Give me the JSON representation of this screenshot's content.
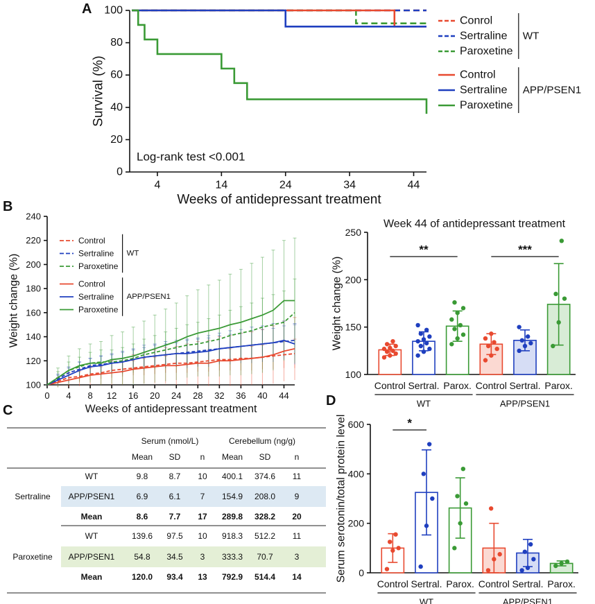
{
  "panel_labels": [
    "A",
    "B",
    "C",
    "D"
  ],
  "chart_data": [
    {
      "type": "step",
      "ylabel": "Survival (%)",
      "xlabel": "Weeks of antidepressant treatment",
      "annotation": "Log-rank test <0.001",
      "xlim": [
        0,
        46
      ],
      "xticks": [
        4,
        14,
        24,
        34,
        44
      ],
      "ylim": [
        0,
        100
      ],
      "yticks": [
        0,
        20,
        40,
        60,
        80,
        100
      ],
      "legend": "right",
      "series": [
        {
          "name": "Conrol",
          "group": "WT",
          "color": "#e8492f",
          "dashed": true,
          "x": [
            0,
            46
          ],
          "values": [
            100,
            100
          ]
        },
        {
          "name": "Sertraline",
          "group": "WT",
          "color": "#1f3fbf",
          "dashed": true,
          "x": [
            0,
            46
          ],
          "values": [
            100,
            100
          ]
        },
        {
          "name": "Paroxetine",
          "group": "WT",
          "color": "#3a9a35",
          "dashed": true,
          "x": [
            0,
            35,
            46
          ],
          "values": [
            100,
            92,
            92
          ]
        },
        {
          "name": "Control",
          "group": "APP/PSEN1",
          "color": "#e8492f",
          "dashed": false,
          "x": [
            0,
            41,
            46
          ],
          "values": [
            100,
            90,
            90
          ]
        },
        {
          "name": "Sertraline",
          "group": "APP/PSEN1",
          "color": "#1f3fbf",
          "dashed": false,
          "x": [
            0,
            24,
            46
          ],
          "values": [
            100,
            90,
            90
          ]
        },
        {
          "name": "Paroxetine",
          "group": "APP/PSEN1",
          "color": "#3a9a35",
          "dashed": false,
          "x": [
            0,
            1,
            2,
            4,
            14,
            16,
            18,
            46
          ],
          "values": [
            100,
            91,
            82,
            73,
            64,
            55,
            45,
            36
          ]
        }
      ]
    },
    {
      "type": "line",
      "ylabel": "Weight change (%)",
      "xlabel": "Weeks of antidepressant treatment",
      "xlim": [
        0,
        46
      ],
      "xticks": [
        0,
        4,
        8,
        12,
        16,
        20,
        24,
        28,
        32,
        36,
        40,
        44
      ],
      "ylim": [
        100,
        240
      ],
      "yticks": [
        100,
        120,
        140,
        160,
        180,
        200,
        220,
        240
      ],
      "legend": "upper left",
      "x": [
        0,
        2,
        4,
        6,
        8,
        10,
        12,
        14,
        16,
        18,
        20,
        22,
        24,
        26,
        28,
        30,
        32,
        34,
        36,
        38,
        40,
        42,
        44,
        46
      ],
      "series": [
        {
          "name": "Control",
          "group": "WT",
          "color": "#e8492f",
          "dashed": true,
          "values": [
            100,
            103,
            106,
            107,
            109,
            110,
            112,
            113,
            114,
            115,
            116,
            117,
            118,
            118,
            119,
            120,
            121,
            121,
            122,
            122,
            123,
            124,
            125,
            126
          ],
          "errors": [
            0,
            3,
            4,
            4,
            5,
            5,
            6,
            6,
            6,
            7,
            7,
            7,
            8,
            8,
            8,
            9,
            9,
            9,
            10,
            10,
            10,
            11,
            11,
            12
          ]
        },
        {
          "name": "Sertraline",
          "group": "WT",
          "color": "#1f3fbf",
          "dashed": true,
          "values": [
            100,
            105,
            110,
            113,
            116,
            117,
            118,
            119,
            121,
            123,
            124,
            125,
            126,
            127,
            128,
            129,
            130,
            131,
            132,
            133,
            134,
            135,
            136,
            137
          ],
          "errors": [
            0,
            4,
            5,
            6,
            6,
            7,
            7,
            8,
            8,
            8,
            9,
            9,
            9,
            10,
            10,
            10,
            11,
            11,
            11,
            12,
            12,
            12,
            13,
            13
          ]
        },
        {
          "name": "Paroxetine",
          "group": "WT",
          "color": "#3a9a35",
          "dashed": true,
          "values": [
            100,
            106,
            112,
            115,
            118,
            119,
            119,
            120,
            122,
            125,
            127,
            129,
            131,
            133,
            134,
            136,
            138,
            141,
            143,
            145,
            148,
            150,
            152,
            160
          ],
          "errors": [
            0,
            5,
            7,
            8,
            9,
            10,
            10,
            11,
            12,
            13,
            14,
            15,
            16,
            17,
            18,
            19,
            20,
            21,
            22,
            23,
            24,
            25,
            26,
            28
          ]
        },
        {
          "name": "Control",
          "group": "APP/PSEN1",
          "color": "#e8492f",
          "dashed": false,
          "values": [
            100,
            102,
            104,
            106,
            108,
            109,
            110,
            111,
            113,
            114,
            115,
            116,
            116,
            117,
            118,
            118,
            120,
            120,
            121,
            122,
            123,
            125,
            128,
            130
          ],
          "errors": [
            0,
            4,
            6,
            7,
            8,
            9,
            10,
            11,
            12,
            13,
            14,
            15,
            16,
            17,
            18,
            19,
            20,
            21,
            22,
            22,
            23,
            24,
            25,
            26
          ]
        },
        {
          "name": "Sertraline",
          "group": "APP/PSEN1",
          "color": "#1f3fbf",
          "dashed": false,
          "values": [
            100,
            104,
            108,
            112,
            115,
            116,
            118,
            119,
            121,
            123,
            124,
            125,
            126,
            126,
            127,
            128,
            130,
            131,
            132,
            133,
            134,
            135,
            137,
            134
          ],
          "errors": [
            0,
            4,
            6,
            7,
            7,
            8,
            8,
            9,
            9,
            10,
            10,
            11,
            11,
            12,
            12,
            13,
            13,
            14,
            14,
            15,
            15,
            16,
            16,
            17
          ]
        },
        {
          "name": "Paroxetine",
          "group": "APP/PSEN1",
          "color": "#3a9a35",
          "dashed": false,
          "values": [
            100,
            106,
            112,
            116,
            118,
            118,
            121,
            122,
            124,
            127,
            130,
            133,
            136,
            140,
            143,
            145,
            147,
            150,
            152,
            155,
            158,
            162,
            170,
            170
          ],
          "errors": [
            0,
            8,
            12,
            14,
            16,
            18,
            20,
            22,
            24,
            26,
            28,
            30,
            32,
            34,
            36,
            38,
            40,
            42,
            44,
            46,
            48,
            50,
            50,
            52
          ]
        }
      ]
    },
    {
      "type": "bar",
      "title": "Week 44 of antidepressant treatment",
      "ylabel": "Weight change (%)",
      "ylim": [
        100,
        250
      ],
      "yticks": [
        100,
        150,
        200,
        250
      ],
      "categories": [
        "Control",
        "Sertral.",
        "Parox.",
        "Control",
        "Sertral.",
        "Parox."
      ],
      "groups": [
        {
          "label": "WT",
          "span": [
            0,
            2
          ]
        },
        {
          "label": "APP/PSEN1",
          "span": [
            3,
            5
          ]
        }
      ],
      "values": [
        126,
        135,
        151,
        132,
        136,
        174
      ],
      "errors": [
        6,
        10,
        16,
        11,
        11,
        43
      ],
      "colors": [
        "#e8492f",
        "#1f3fbf",
        "#3a9a35",
        "#e8492f",
        "#1f3fbf",
        "#3a9a35"
      ],
      "fills": [
        "#ffffff",
        "#ffffff",
        "#ffffff",
        "#fbd9d2",
        "#d6ddf5",
        "#d8ecd6"
      ],
      "points": [
        [
          118,
          120,
          122,
          124,
          125,
          127,
          128,
          130,
          132,
          135
        ],
        [
          120,
          124,
          127,
          130,
          133,
          135,
          137,
          140,
          143,
          147,
          152
        ],
        [
          132,
          138,
          142,
          148,
          152,
          158,
          165,
          170,
          176
        ],
        [
          115,
          120,
          127,
          130,
          134,
          138,
          143
        ],
        [
          125,
          130,
          133,
          136,
          140,
          150
        ],
        [
          130,
          155,
          180,
          185,
          241
        ]
      ],
      "significance": [
        {
          "from": 0,
          "to": 2,
          "label": "**"
        },
        {
          "from": 3,
          "to": 5,
          "label": "***"
        }
      ]
    },
    {
      "type": "bar",
      "ylabel": "Serum serotonin/total protein level",
      "ylim": [
        0,
        600
      ],
      "yticks": [
        0,
        200,
        400,
        600
      ],
      "categories": [
        "Control",
        "Sertral.",
        "Parox.",
        "Control",
        "Sertral.",
        "Parox."
      ],
      "groups": [
        {
          "label": "WT",
          "span": [
            0,
            2
          ]
        },
        {
          "label": "APP/PSEN1",
          "span": [
            3,
            5
          ]
        }
      ],
      "values": [
        100,
        325,
        262,
        100,
        80,
        38
      ],
      "errors": [
        58,
        172,
        122,
        100,
        55,
        10
      ],
      "colors": [
        "#e8492f",
        "#1f3fbf",
        "#3a9a35",
        "#e8492f",
        "#1f3fbf",
        "#3a9a35"
      ],
      "fills": [
        "#ffffff",
        "#ffffff",
        "#ffffff",
        "#fbd9d2",
        "#d6ddf5",
        "#d8ecd6"
      ],
      "points": [
        [
          15,
          90,
          100,
          125,
          155
        ],
        [
          25,
          190,
          300,
          400,
          520
        ],
        [
          100,
          200,
          280,
          310,
          420
        ],
        [
          10,
          55,
          75,
          260
        ],
        [
          10,
          20,
          55,
          85,
          115
        ],
        [
          28,
          38,
          45
        ]
      ],
      "significance": [
        {
          "from": 0,
          "to": 1,
          "label": "*"
        }
      ]
    }
  ],
  "table": {
    "header_groups": [
      "Serum (nmol/L)",
      "Cerebellum (ng/g)"
    ],
    "columns": [
      "Mean",
      "SD",
      "n",
      "Mean",
      "SD",
      "n"
    ],
    "groups": [
      {
        "name": "Sertraline",
        "color": "#2f5678",
        "band": "#dde9f3",
        "rows": [
          [
            "WT",
            "9.8",
            "8.7",
            "10",
            "400.1",
            "374.6",
            "11"
          ],
          [
            "APP/PSEN1",
            "6.9",
            "6.1",
            "7",
            "154.9",
            "208.0",
            "9"
          ],
          [
            "Mean",
            "8.6",
            "7.7",
            "17",
            "289.8",
            "328.2",
            "20"
          ]
        ]
      },
      {
        "name": "Paroxetine",
        "color": "#56622d",
        "band": "#e4efd6",
        "rows": [
          [
            "WT",
            "139.6",
            "97.5",
            "10",
            "918.3",
            "512.2",
            "11"
          ],
          [
            "APP/PSEN1",
            "54.8",
            "34.5",
            "3",
            "333.3",
            "70.7",
            "3"
          ],
          [
            "Mean",
            "120.0",
            "93.4",
            "13",
            "792.9",
            "514.4",
            "14"
          ]
        ]
      }
    ]
  }
}
